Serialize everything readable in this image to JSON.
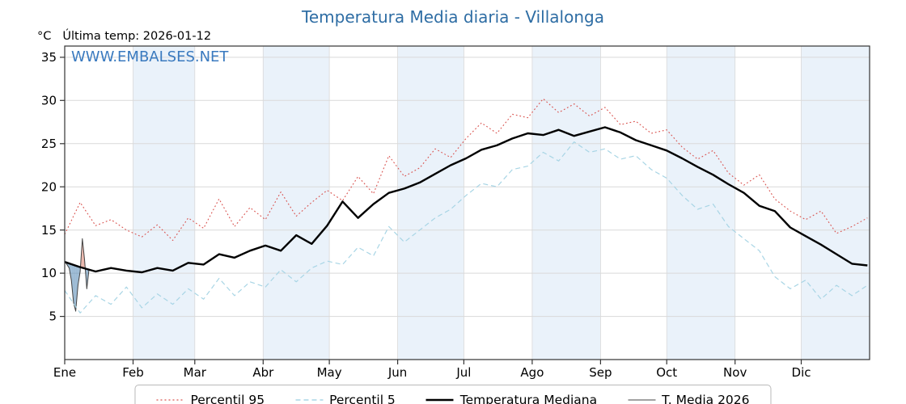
{
  "annotations": {
    "watermark": "WWW.EMBALSES.NET",
    "last_temp": "Última temp: 2026-01-12"
  },
  "colors": {
    "title": "#2e6da4",
    "watermark": "#3a7abf",
    "band": "#eaf2fa",
    "grid": "#d9d9d9",
    "axis": "#333333",
    "fill_below": "#5b8db8",
    "fill_above": "#dd8877"
  },
  "chart_data": {
    "type": "line",
    "title": "Temperatura Media diaria - Villalonga",
    "ylabel": "°C",
    "xlabel": "",
    "xlim": [
      1,
      366
    ],
    "ylim": [
      0,
      36.3
    ],
    "yticks": [
      5,
      10,
      15,
      20,
      25,
      30,
      35
    ],
    "grid": true,
    "legend_position": "bottom",
    "month_labels": [
      "Ene",
      "Feb",
      "Mar",
      "Abr",
      "May",
      "Jun",
      "Jul",
      "Ago",
      "Sep",
      "Oct",
      "Nov",
      "Dic"
    ],
    "month_start_days": [
      1,
      32,
      60,
      91,
      121,
      152,
      182,
      213,
      244,
      274,
      305,
      335
    ],
    "band_months": [
      1,
      3,
      5,
      7,
      9,
      11
    ],
    "series": [
      {
        "name": "Percentil 95",
        "color": "#d9534f",
        "style": "dotted",
        "width": 1.1,
        "x": [
          1,
          8,
          15,
          22,
          29,
          36,
          43,
          50,
          57,
          64,
          71,
          78,
          85,
          92,
          99,
          106,
          113,
          120,
          127,
          134,
          141,
          148,
          155,
          162,
          169,
          176,
          183,
          190,
          197,
          204,
          211,
          218,
          225,
          232,
          239,
          246,
          253,
          260,
          267,
          274,
          281,
          288,
          295,
          302,
          309,
          316,
          323,
          330,
          337,
          344,
          351,
          358,
          365
        ],
        "values": [
          14.5,
          18.2,
          15.5,
          16.2,
          15.0,
          14.2,
          15.6,
          13.8,
          16.4,
          15.2,
          18.6,
          15.4,
          17.6,
          16.2,
          19.4,
          16.6,
          18.2,
          19.6,
          18.4,
          21.2,
          19.2,
          23.6,
          21.2,
          22.2,
          24.4,
          23.4,
          25.6,
          27.4,
          26.2,
          28.4,
          28.0,
          30.2,
          28.6,
          29.6,
          28.2,
          29.2,
          27.2,
          27.6,
          26.2,
          26.6,
          24.6,
          23.2,
          24.2,
          21.6,
          20.2,
          21.4,
          18.6,
          17.2,
          16.2,
          17.2,
          14.6,
          15.4,
          16.4
        ]
      },
      {
        "name": "Percentil 5",
        "color": "#a8d5e5",
        "style": "dashed",
        "width": 1.2,
        "x": [
          1,
          8,
          15,
          22,
          29,
          36,
          43,
          50,
          57,
          64,
          71,
          78,
          85,
          92,
          99,
          106,
          113,
          120,
          127,
          134,
          141,
          148,
          155,
          162,
          169,
          176,
          183,
          190,
          197,
          204,
          211,
          218,
          225,
          232,
          239,
          246,
          253,
          260,
          267,
          274,
          281,
          288,
          295,
          302,
          309,
          316,
          323,
          330,
          337,
          344,
          351,
          358,
          365
        ],
        "values": [
          8.0,
          5.4,
          7.4,
          6.4,
          8.4,
          6.0,
          7.6,
          6.4,
          8.2,
          7.0,
          9.4,
          7.4,
          9.0,
          8.4,
          10.4,
          9.0,
          10.6,
          11.4,
          11.0,
          13.0,
          12.0,
          15.4,
          13.6,
          15.0,
          16.4,
          17.4,
          19.0,
          20.4,
          20.0,
          22.0,
          22.4,
          24.0,
          23.0,
          25.2,
          24.0,
          24.4,
          23.2,
          23.6,
          22.0,
          21.0,
          19.0,
          17.4,
          18.0,
          15.4,
          14.0,
          12.6,
          9.6,
          8.2,
          9.2,
          7.0,
          8.6,
          7.4,
          8.6
        ]
      },
      {
        "name": "Temperatura Mediana",
        "color": "#000000",
        "style": "solid",
        "width": 2.4,
        "x": [
          1,
          8,
          15,
          22,
          29,
          36,
          43,
          50,
          57,
          64,
          71,
          78,
          85,
          92,
          99,
          106,
          113,
          120,
          127,
          134,
          141,
          148,
          155,
          162,
          169,
          176,
          183,
          190,
          197,
          204,
          211,
          218,
          225,
          232,
          239,
          246,
          253,
          260,
          267,
          274,
          281,
          288,
          295,
          302,
          309,
          316,
          323,
          330,
          337,
          344,
          351,
          358,
          365
        ],
        "values": [
          11.3,
          10.7,
          10.2,
          10.6,
          10.3,
          10.1,
          10.6,
          10.3,
          11.2,
          11.0,
          12.2,
          11.8,
          12.6,
          13.2,
          12.6,
          14.4,
          13.4,
          15.5,
          18.3,
          16.4,
          18.0,
          19.3,
          19.8,
          20.5,
          21.5,
          22.5,
          23.3,
          24.3,
          24.8,
          25.6,
          26.2,
          26.0,
          26.6,
          25.9,
          26.4,
          26.9,
          26.3,
          25.4,
          24.8,
          24.2,
          23.3,
          22.3,
          21.4,
          20.3,
          19.3,
          17.8,
          17.2,
          15.3,
          14.3,
          13.3,
          12.2,
          11.1,
          10.9
        ]
      },
      {
        "name": "T. Media 2026",
        "color": "#444444",
        "style": "solid",
        "width": 1,
        "fill_vs": "Temperatura Mediana",
        "fill_below_color": "#5b8db8",
        "fill_above_color": "#dd8877",
        "x": [
          1,
          2,
          3,
          4,
          5,
          6,
          7,
          8,
          9,
          10,
          11,
          12
        ],
        "values": [
          11.4,
          11.0,
          10.6,
          9.2,
          6.6,
          5.6,
          8.6,
          10.2,
          14.0,
          11.6,
          8.2,
          10.4
        ]
      }
    ]
  }
}
